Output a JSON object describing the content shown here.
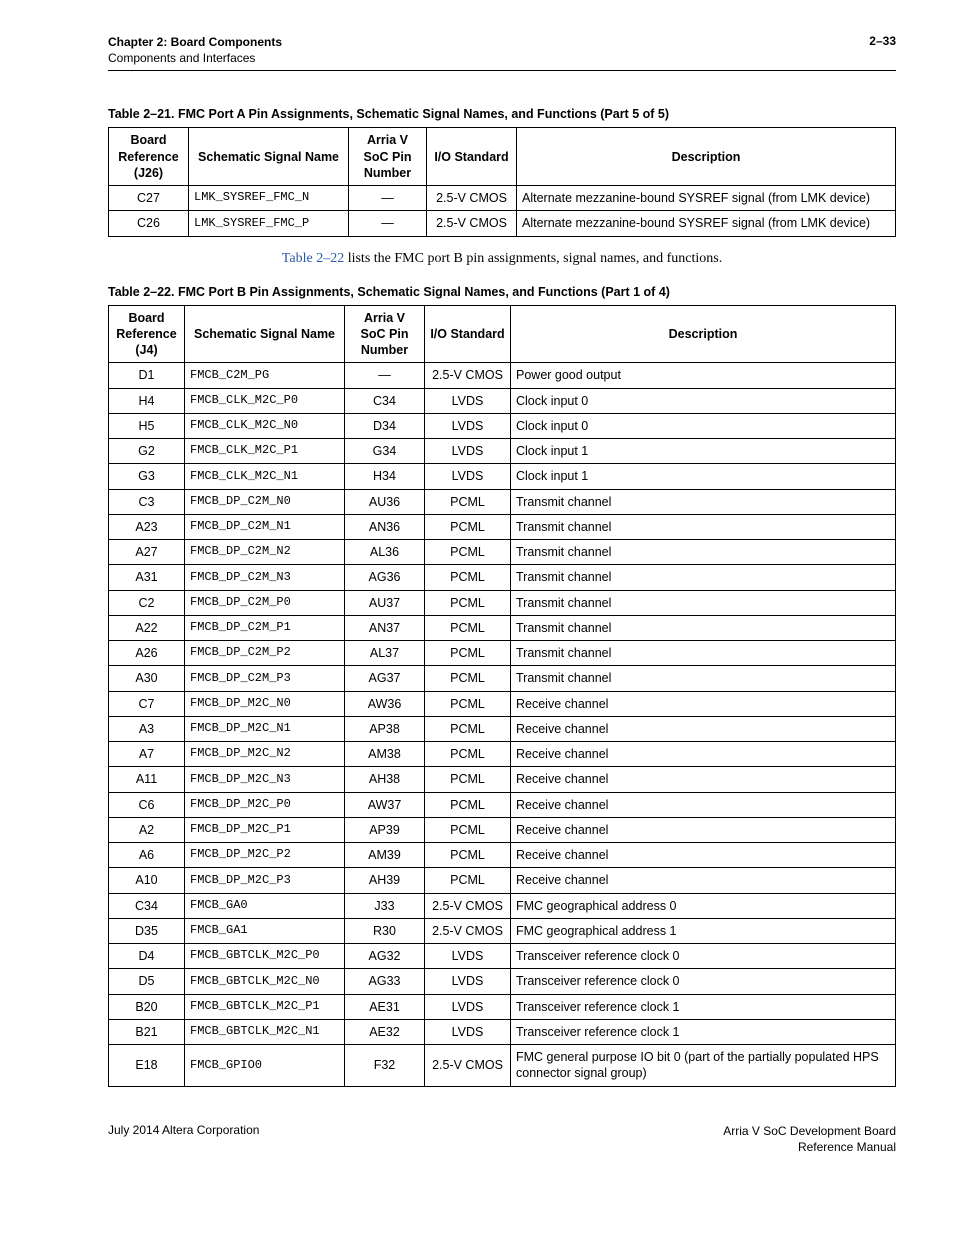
{
  "header": {
    "chapter": "Chapter 2: Board Components",
    "section": "Components and Interfaces",
    "page": "2–33"
  },
  "table1": {
    "caption": "Table 2–21. FMC Port A Pin Assignments, Schematic Signal Names, and Functions  (Part 5 of 5)",
    "headers": [
      "Board Reference (J26)",
      "Schematic Signal Name",
      "Arria V SoC Pin Number",
      "I/O Standard",
      "Description"
    ],
    "rows": [
      [
        "C27",
        "LMK_SYSREF_FMC_N",
        "—",
        "2.5-V CMOS",
        "Alternate mezzanine-bound SYSREF signal (from LMK device)"
      ],
      [
        "C26",
        "LMK_SYSREF_FMC_P",
        "—",
        "2.5-V CMOS",
        "Alternate mezzanine-bound SYSREF signal (from LMK device)"
      ]
    ]
  },
  "intro": {
    "link_text": "Table 2–22",
    "rest": " lists the FMC port B pin assignments, signal names, and functions."
  },
  "table2": {
    "caption": "Table 2–22. FMC Port B Pin Assignments, Schematic Signal Names, and Functions  (Part 1 of 4)",
    "headers": [
      "Board Reference (J4)",
      "Schematic Signal Name",
      "Arria V SoC Pin Number",
      "I/O Standard",
      "Description"
    ],
    "rows": [
      [
        "D1",
        "FMCB_C2M_PG",
        "—",
        "2.5-V CMOS",
        "Power good output"
      ],
      [
        "H4",
        "FMCB_CLK_M2C_P0",
        "C34",
        "LVDS",
        "Clock input 0"
      ],
      [
        "H5",
        "FMCB_CLK_M2C_N0",
        "D34",
        "LVDS",
        "Clock input 0"
      ],
      [
        "G2",
        "FMCB_CLK_M2C_P1",
        "G34",
        "LVDS",
        "Clock input 1"
      ],
      [
        "G3",
        "FMCB_CLK_M2C_N1",
        "H34",
        "LVDS",
        "Clock input 1"
      ],
      [
        "C3",
        "FMCB_DP_C2M_N0",
        "AU36",
        "PCML",
        "Transmit channel"
      ],
      [
        "A23",
        "FMCB_DP_C2M_N1",
        "AN36",
        "PCML",
        "Transmit channel"
      ],
      [
        "A27",
        "FMCB_DP_C2M_N2",
        "AL36",
        "PCML",
        "Transmit channel"
      ],
      [
        "A31",
        "FMCB_DP_C2M_N3",
        "AG36",
        "PCML",
        "Transmit channel"
      ],
      [
        "C2",
        "FMCB_DP_C2M_P0",
        "AU37",
        "PCML",
        "Transmit channel"
      ],
      [
        "A22",
        "FMCB_DP_C2M_P1",
        "AN37",
        "PCML",
        "Transmit channel"
      ],
      [
        "A26",
        "FMCB_DP_C2M_P2",
        "AL37",
        "PCML",
        "Transmit channel"
      ],
      [
        "A30",
        "FMCB_DP_C2M_P3",
        "AG37",
        "PCML",
        "Transmit channel"
      ],
      [
        "C7",
        "FMCB_DP_M2C_N0",
        "AW36",
        "PCML",
        "Receive channel"
      ],
      [
        "A3",
        "FMCB_DP_M2C_N1",
        "AP38",
        "PCML",
        "Receive channel"
      ],
      [
        "A7",
        "FMCB_DP_M2C_N2",
        "AM38",
        "PCML",
        "Receive channel"
      ],
      [
        "A11",
        "FMCB_DP_M2C_N3",
        "AH38",
        "PCML",
        "Receive channel"
      ],
      [
        "C6",
        "FMCB_DP_M2C_P0",
        "AW37",
        "PCML",
        "Receive channel"
      ],
      [
        "A2",
        "FMCB_DP_M2C_P1",
        "AP39",
        "PCML",
        "Receive channel"
      ],
      [
        "A6",
        "FMCB_DP_M2C_P2",
        "AM39",
        "PCML",
        "Receive channel"
      ],
      [
        "A10",
        "FMCB_DP_M2C_P3",
        "AH39",
        "PCML",
        "Receive channel"
      ],
      [
        "C34",
        "FMCB_GA0",
        "J33",
        "2.5-V CMOS",
        "FMC geographical address 0"
      ],
      [
        "D35",
        "FMCB_GA1",
        "R30",
        "2.5-V CMOS",
        "FMC geographical address 1"
      ],
      [
        "D4",
        "FMCB_GBTCLK_M2C_P0",
        "AG32",
        "LVDS",
        "Transceiver reference clock 0"
      ],
      [
        "D5",
        "FMCB_GBTCLK_M2C_N0",
        "AG33",
        "LVDS",
        "Transceiver reference clock 0"
      ],
      [
        "B20",
        "FMCB_GBTCLK_M2C_P1",
        "AE31",
        "LVDS",
        "Transceiver reference clock 1"
      ],
      [
        "B21",
        "FMCB_GBTCLK_M2C_N1",
        "AE32",
        "LVDS",
        "Transceiver reference clock 1"
      ],
      [
        "E18",
        "FMCB_GPIO0",
        "F32",
        "2.5-V CMOS",
        "FMC general purpose IO bit 0 (part of the partially populated HPS connector signal group)"
      ]
    ]
  },
  "footer": {
    "left": "July 2014   Altera Corporation",
    "right1": "Arria V SoC Development Board",
    "right2": "Reference Manual"
  }
}
